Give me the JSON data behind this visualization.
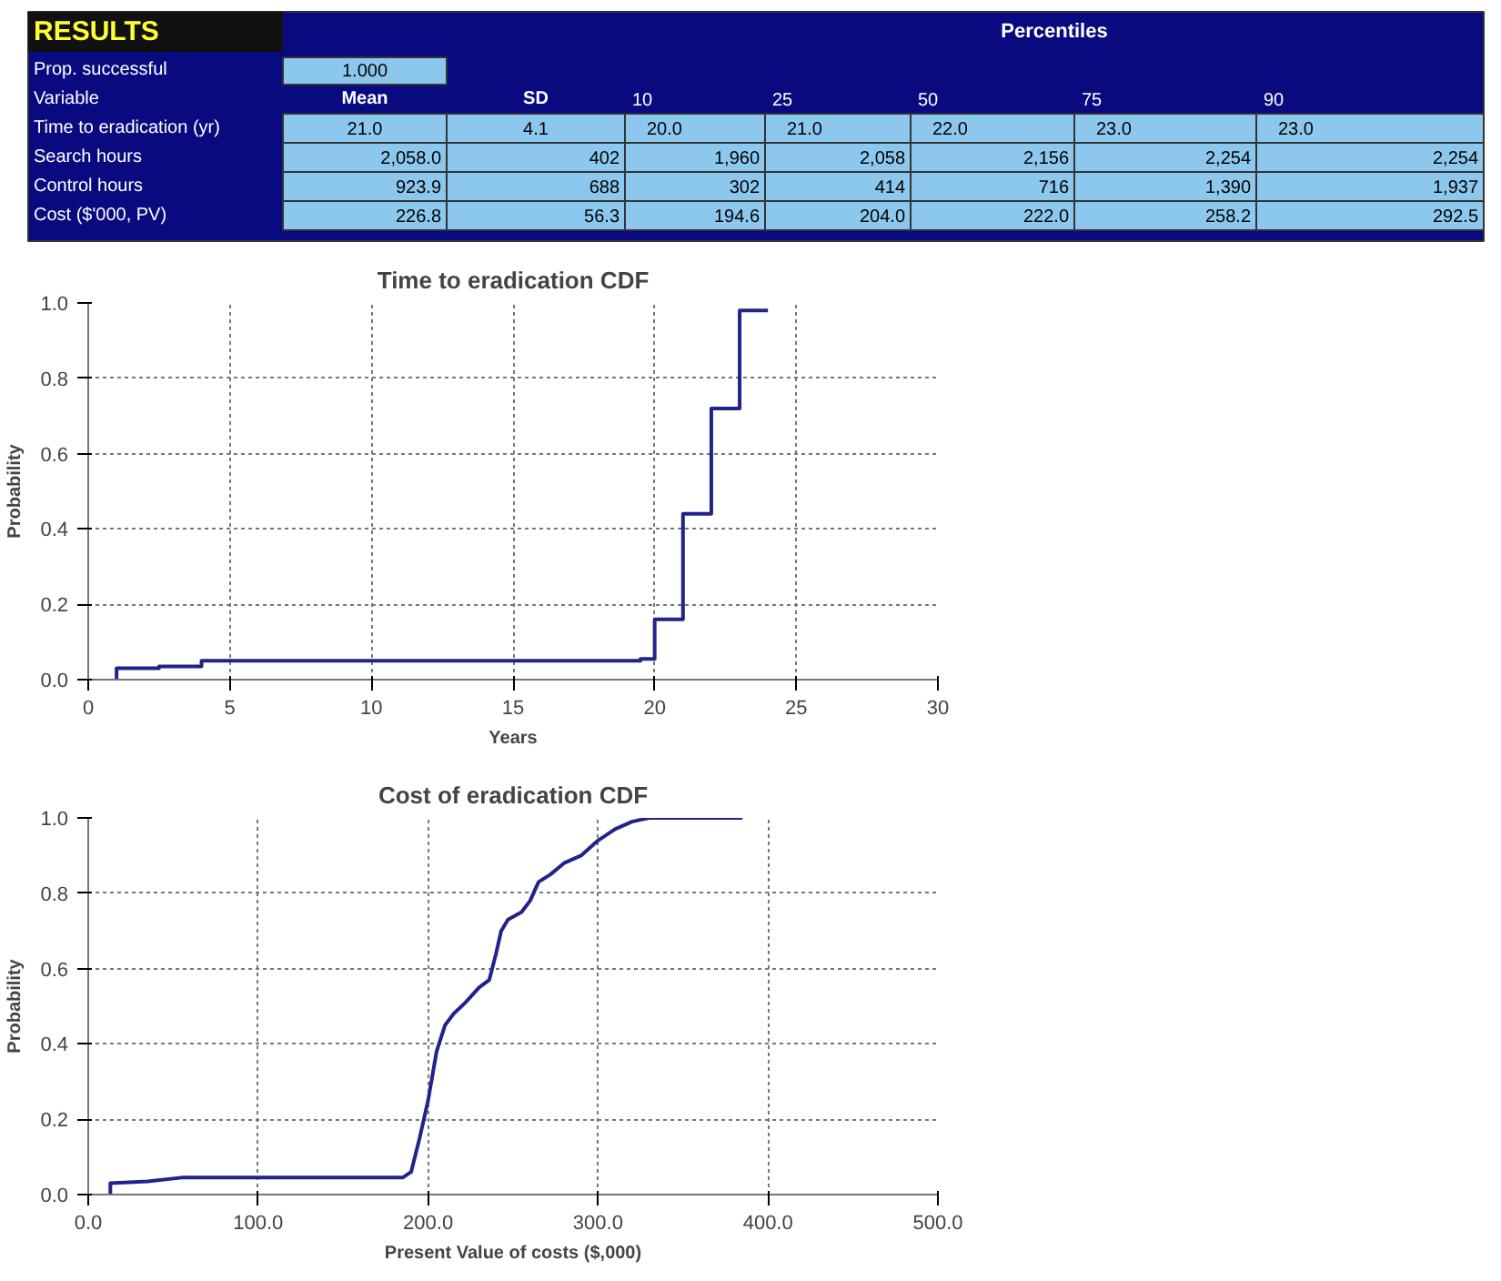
{
  "chart_data": [
    {
      "type": "other",
      "title": "RESULTS",
      "subtitle": "Percentiles",
      "annotations": [
        "Prop. successful",
        "1.000",
        "Variable"
      ],
      "categories": [
        "Mean",
        "SD",
        "10",
        "25",
        "50",
        "75",
        "90"
      ],
      "y_categories": [
        "Time to eradication (yr)",
        "Search hours",
        "Control hours",
        "Cost ($'000, PV)"
      ],
      "cell_labels": [
        [
          "21.0",
          "4.1",
          "20.0",
          "21.0",
          "22.0",
          "23.0",
          "23.0"
        ],
        [
          "2,058.0",
          "402",
          "1,960",
          "2,058",
          "2,156",
          "2,254",
          "2,254"
        ],
        [
          "923.9",
          "688",
          "302",
          "414",
          "716",
          "1,390",
          "1,937"
        ],
        [
          "226.8",
          "56.3",
          "194.6",
          "204.0",
          "222.0",
          "258.2",
          "292.5"
        ]
      ]
    },
    {
      "type": "step",
      "title": "Time to eradication CDF",
      "xlabel": "Years",
      "ylabel": "Probability",
      "x": [
        1,
        1,
        2.5,
        4,
        19,
        19.5,
        20,
        21,
        22,
        23,
        24
      ],
      "series": [
        {
          "color": "#22228a",
          "values": [
            0,
            0.03,
            0.035,
            0.05,
            0.05,
            0.055,
            0.16,
            0.44,
            0.72,
            0.98,
            0.98
          ]
        }
      ],
      "xlim": [
        0,
        30
      ],
      "ylim": [
        0,
        1
      ],
      "xticks": [
        0,
        5,
        10,
        15,
        20,
        25,
        30
      ],
      "yticks": [
        {
          "value": 0,
          "label": "0.0"
        },
        {
          "value": 0.2,
          "label": "0.2"
        },
        {
          "value": 0.4,
          "label": "0.4"
        },
        {
          "value": 0.6,
          "label": "0.6"
        },
        {
          "value": 0.8,
          "label": "0.8"
        },
        {
          "value": 1,
          "label": "1.0"
        }
      ],
      "grid": true
    },
    {
      "type": "line",
      "title": "Cost of eradication CDF",
      "xlabel": "Present Value of costs ($,000)",
      "ylabel": "Probability",
      "x": [
        13,
        13,
        35,
        55,
        185,
        190,
        195,
        200,
        205,
        210,
        215,
        222,
        230,
        236,
        240,
        243,
        247,
        255,
        260,
        265,
        272,
        280,
        290,
        300,
        310,
        320,
        330,
        385
      ],
      "series": [
        {
          "color": "#22228a",
          "values": [
            0,
            0.03,
            0.035,
            0.045,
            0.045,
            0.06,
            0.15,
            0.25,
            0.38,
            0.45,
            0.48,
            0.51,
            0.55,
            0.57,
            0.64,
            0.7,
            0.73,
            0.75,
            0.78,
            0.83,
            0.85,
            0.88,
            0.9,
            0.94,
            0.97,
            0.99,
            1.0,
            1.0
          ]
        }
      ],
      "xlim": [
        0,
        500
      ],
      "ylim": [
        0,
        1
      ],
      "xticks": [
        {
          "value": 0,
          "label": "0.0"
        },
        {
          "value": 100,
          "label": "100.0"
        },
        {
          "value": 200,
          "label": "200.0"
        },
        {
          "value": 300,
          "label": "300.0"
        },
        {
          "value": 400,
          "label": "400.0"
        },
        {
          "value": 500,
          "label": "500.0"
        }
      ],
      "yticks": [
        {
          "value": 0,
          "label": "0.0"
        },
        {
          "value": 0.2,
          "label": "0.2"
        },
        {
          "value": 0.4,
          "label": "0.4"
        },
        {
          "value": 0.6,
          "label": "0.6"
        },
        {
          "value": 0.8,
          "label": "0.8"
        },
        {
          "value": 1,
          "label": "1.0"
        }
      ],
      "grid": true
    }
  ]
}
